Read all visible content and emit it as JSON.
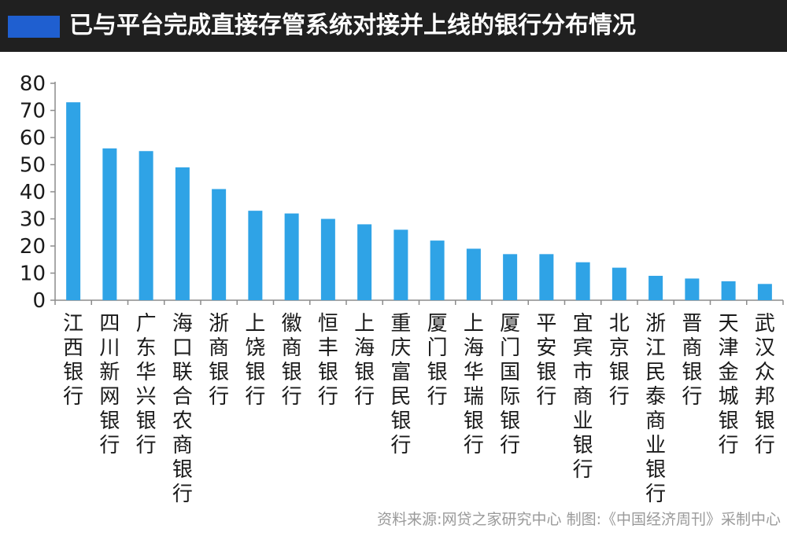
{
  "header": {
    "title": "已与平台完成直接存管系统对接并上线的银行分布情况",
    "accent_color": "#1f5fd0",
    "background_color": "#202020"
  },
  "source": "资料来源:网贷之家研究中心   制图:《中国经济周刊》采制中心",
  "chart_data": {
    "type": "bar",
    "title": "已与平台完成直接存管系统对接并上线的银行分布情况",
    "xlabel": "",
    "ylabel": "",
    "ylim": [
      0,
      80
    ],
    "yticks": [
      0,
      10,
      20,
      30,
      40,
      50,
      60,
      70,
      80
    ],
    "grid": false,
    "legend": "none",
    "bar_color": "#2fa3e6",
    "categories": [
      "江西银行",
      "四川新网银行",
      "广东华兴银行",
      "海口联合农商银行",
      "浙商银行",
      "上饶银行",
      "徽商银行",
      "恒丰银行",
      "上海银行",
      "重庆富民银行",
      "厦门银行",
      "上海华瑞银行",
      "厦门国际银行",
      "平安银行",
      "宜宾市商业银行",
      "北京银行",
      "浙江民泰商业银行",
      "晋商银行",
      "天津金城银行",
      "武汉众邦银行"
    ],
    "values": [
      73,
      56,
      55,
      49,
      41,
      33,
      32,
      30,
      28,
      26,
      22,
      19,
      17,
      17,
      14,
      12,
      9,
      8,
      7,
      6
    ]
  }
}
